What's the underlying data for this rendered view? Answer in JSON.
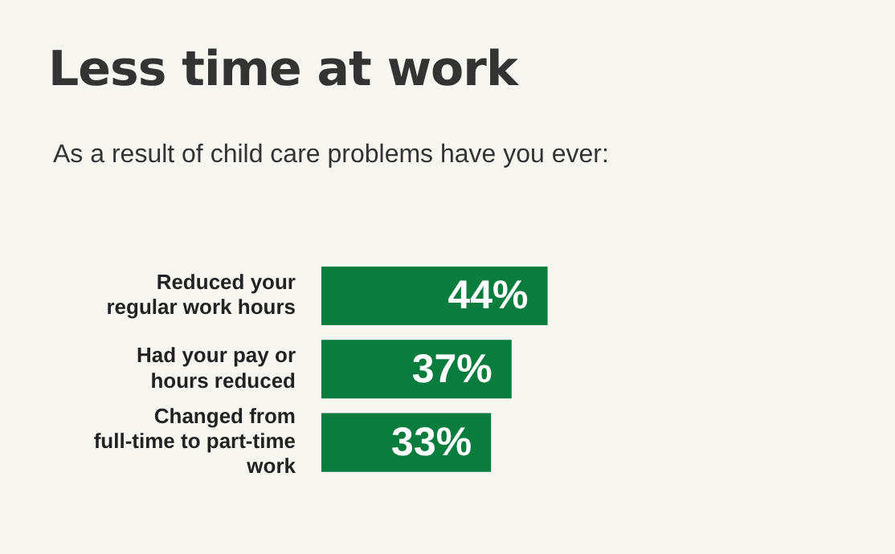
{
  "chart_data": {
    "type": "bar",
    "orientation": "horizontal",
    "title": "Less time at work",
    "subtitle": "As a result of child care problems have you ever:",
    "categories": [
      "Reduced your regular work hours",
      "Had your pay or hours reduced",
      "Changed from full-time to part-time work"
    ],
    "values": [
      44,
      37,
      33
    ],
    "color": "#0a7d3e",
    "value_labels": [
      "44%",
      "37%",
      "33%"
    ],
    "tick_labels": "y",
    "grid": false,
    "legend": false
  }
}
